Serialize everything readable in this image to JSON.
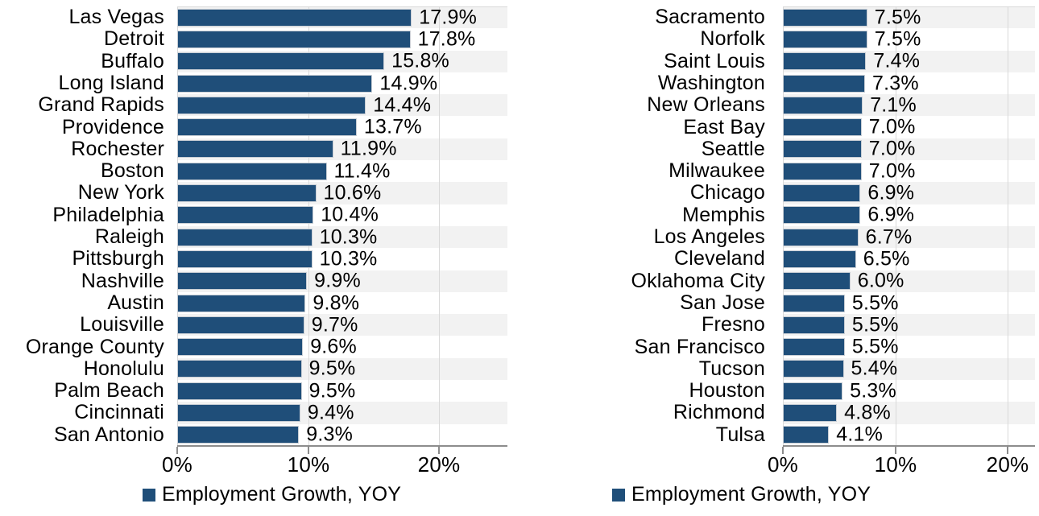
{
  "colors": {
    "bar": "#1F4E79",
    "bar_border": "#C7CDD4",
    "stripe": "#F2F2F2",
    "gridline": "#D9D9D9",
    "axis": "#8C8C8C",
    "text": "#000000"
  },
  "chart_data": [
    {
      "type": "bar",
      "orientation": "horizontal",
      "title": "",
      "xlabel": "",
      "ylabel": "",
      "legend": "Employment Growth, YOY",
      "legend_position": "bottom",
      "grid": "vertical",
      "row_stripes": true,
      "xlim": [
        0,
        25.2
      ],
      "x_ticks": [
        {
          "value": 0,
          "label": "0%"
        },
        {
          "value": 10,
          "label": "10%"
        },
        {
          "value": 20,
          "label": "20%"
        }
      ],
      "categories": [
        "Las Vegas",
        "Detroit",
        "Buffalo",
        "Long Island",
        "Grand Rapids",
        "Providence",
        "Rochester",
        "Boston",
        "New York",
        "Philadelphia",
        "Raleigh",
        "Pittsburgh",
        "Nashville",
        "Austin",
        "Louisville",
        "Orange County",
        "Honolulu",
        "Palm Beach",
        "Cincinnati",
        "San Antonio"
      ],
      "values": [
        17.9,
        17.8,
        15.8,
        14.9,
        14.4,
        13.7,
        11.9,
        11.4,
        10.6,
        10.4,
        10.3,
        10.3,
        9.9,
        9.8,
        9.7,
        9.6,
        9.5,
        9.5,
        9.4,
        9.3
      ],
      "value_labels": [
        "17.9%",
        "17.8%",
        "15.8%",
        "14.9%",
        "14.4%",
        "13.7%",
        "11.9%",
        "11.4%",
        "10.6%",
        "10.4%",
        "10.3%",
        "10.3%",
        "9.9%",
        "9.8%",
        "9.7%",
        "9.6%",
        "9.5%",
        "9.5%",
        "9.4%",
        "9.3%"
      ]
    },
    {
      "type": "bar",
      "orientation": "horizontal",
      "title": "",
      "xlabel": "",
      "ylabel": "",
      "legend": "Employment Growth, YOY",
      "legend_position": "bottom",
      "grid": "vertical",
      "row_stripes": true,
      "xlim": [
        0,
        22.4
      ],
      "x_ticks": [
        {
          "value": 0,
          "label": "0%"
        },
        {
          "value": 10,
          "label": "10%"
        },
        {
          "value": 20,
          "label": "20%"
        }
      ],
      "categories": [
        "Sacramento",
        "Norfolk",
        "Saint Louis",
        "Washington",
        "New Orleans",
        "East Bay",
        "Seattle",
        "Milwaukee",
        "Chicago",
        "Memphis",
        "Los Angeles",
        "Cleveland",
        "Oklahoma City",
        "San Jose",
        "Fresno",
        "San Francisco",
        "Tucson",
        "Houston",
        "Richmond",
        "Tulsa"
      ],
      "values": [
        7.5,
        7.5,
        7.4,
        7.3,
        7.1,
        7.0,
        7.0,
        7.0,
        6.9,
        6.9,
        6.7,
        6.5,
        6.0,
        5.5,
        5.5,
        5.5,
        5.4,
        5.3,
        4.8,
        4.1
      ],
      "value_labels": [
        "7.5%",
        "7.5%",
        "7.4%",
        "7.3%",
        "7.1%",
        "7.0%",
        "7.0%",
        "7.0%",
        "6.9%",
        "6.9%",
        "6.7%",
        "6.5%",
        "6.0%",
        "5.5%",
        "5.5%",
        "5.5%",
        "5.4%",
        "5.3%",
        "4.8%",
        "4.1%"
      ]
    }
  ]
}
